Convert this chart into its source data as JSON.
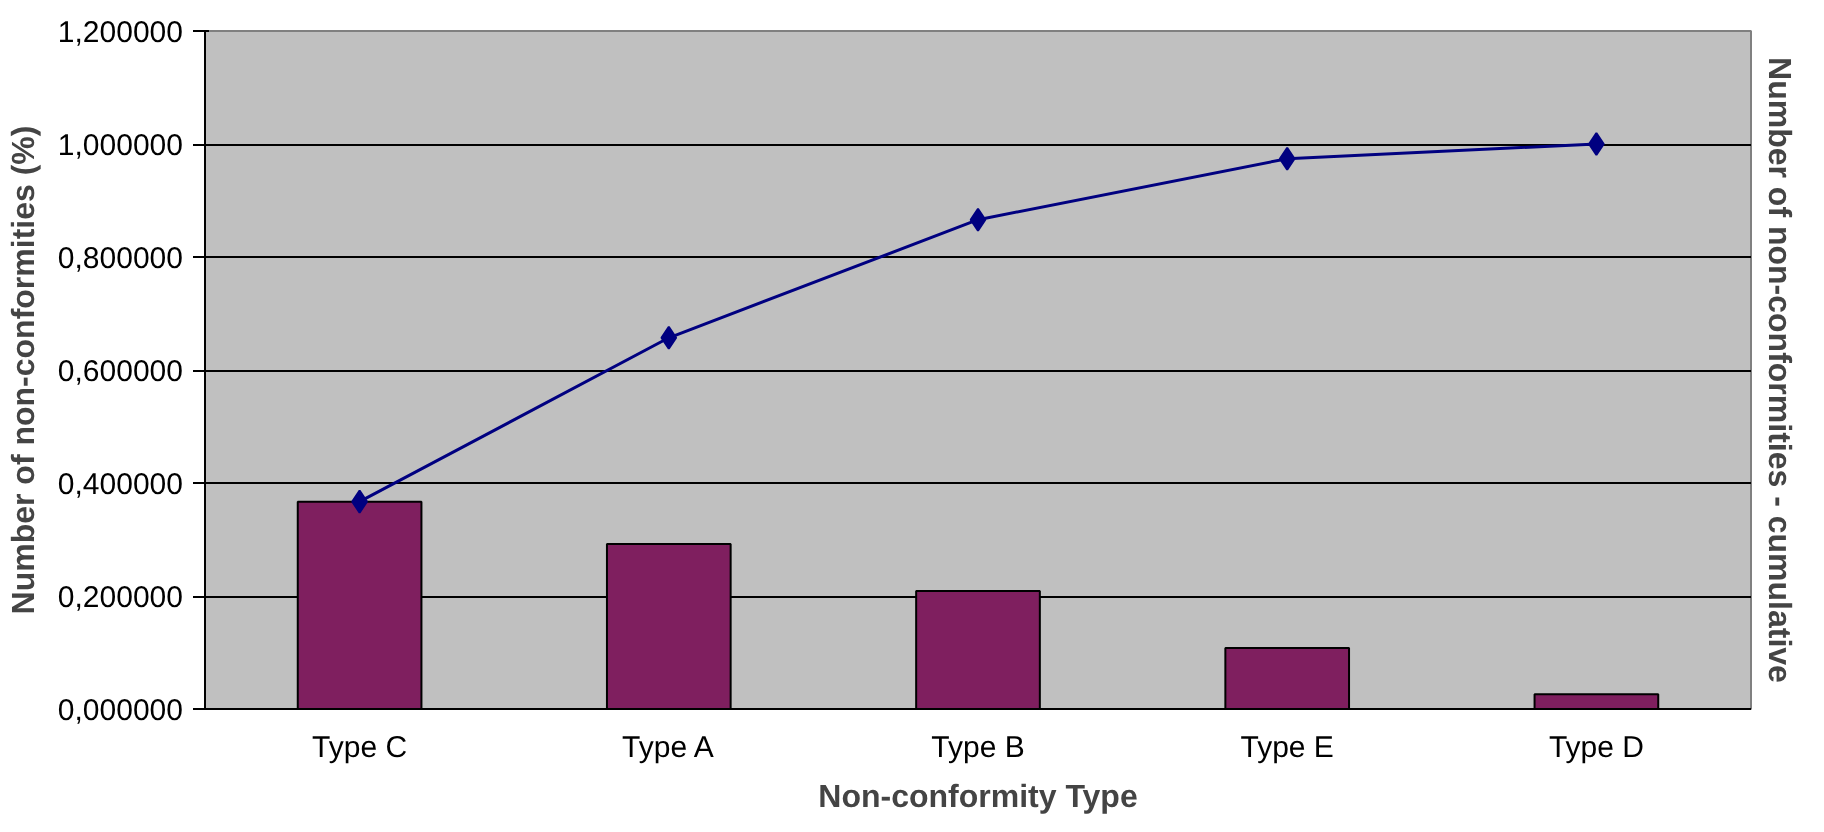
{
  "chart_data": {
    "type": "bar",
    "xlabel": "Non-conformity Type",
    "ylabel": "Number of non-conformities (%)",
    "y2label": "Number of non-conformities - cumulative",
    "categories": [
      "Type C",
      "Type A",
      "Type B",
      "Type E",
      "Type D"
    ],
    "series": [
      {
        "color": "#7f1f5f",
        "values": [
          0.367,
          0.292,
          0.209,
          0.108,
          0.026
        ]
      },
      {
        "type": "line",
        "color": "#000080",
        "marker": "diamond",
        "values": [
          0.367,
          0.657,
          0.866,
          0.974,
          1.0
        ]
      }
    ],
    "ylim": [
      0,
      1.2
    ],
    "yticks": [
      {
        "value": 0,
        "label": "0,000000"
      },
      {
        "value": 0.2,
        "label": "0,200000"
      },
      {
        "value": 0.4,
        "label": "0,400000"
      },
      {
        "value": 0.6,
        "label": "0,600000"
      },
      {
        "value": 0.8,
        "label": "0,800000"
      },
      {
        "value": 1.0,
        "label": "1,000000"
      },
      {
        "value": 1.2,
        "label": "1,200000"
      }
    ],
    "grid": "y"
  }
}
